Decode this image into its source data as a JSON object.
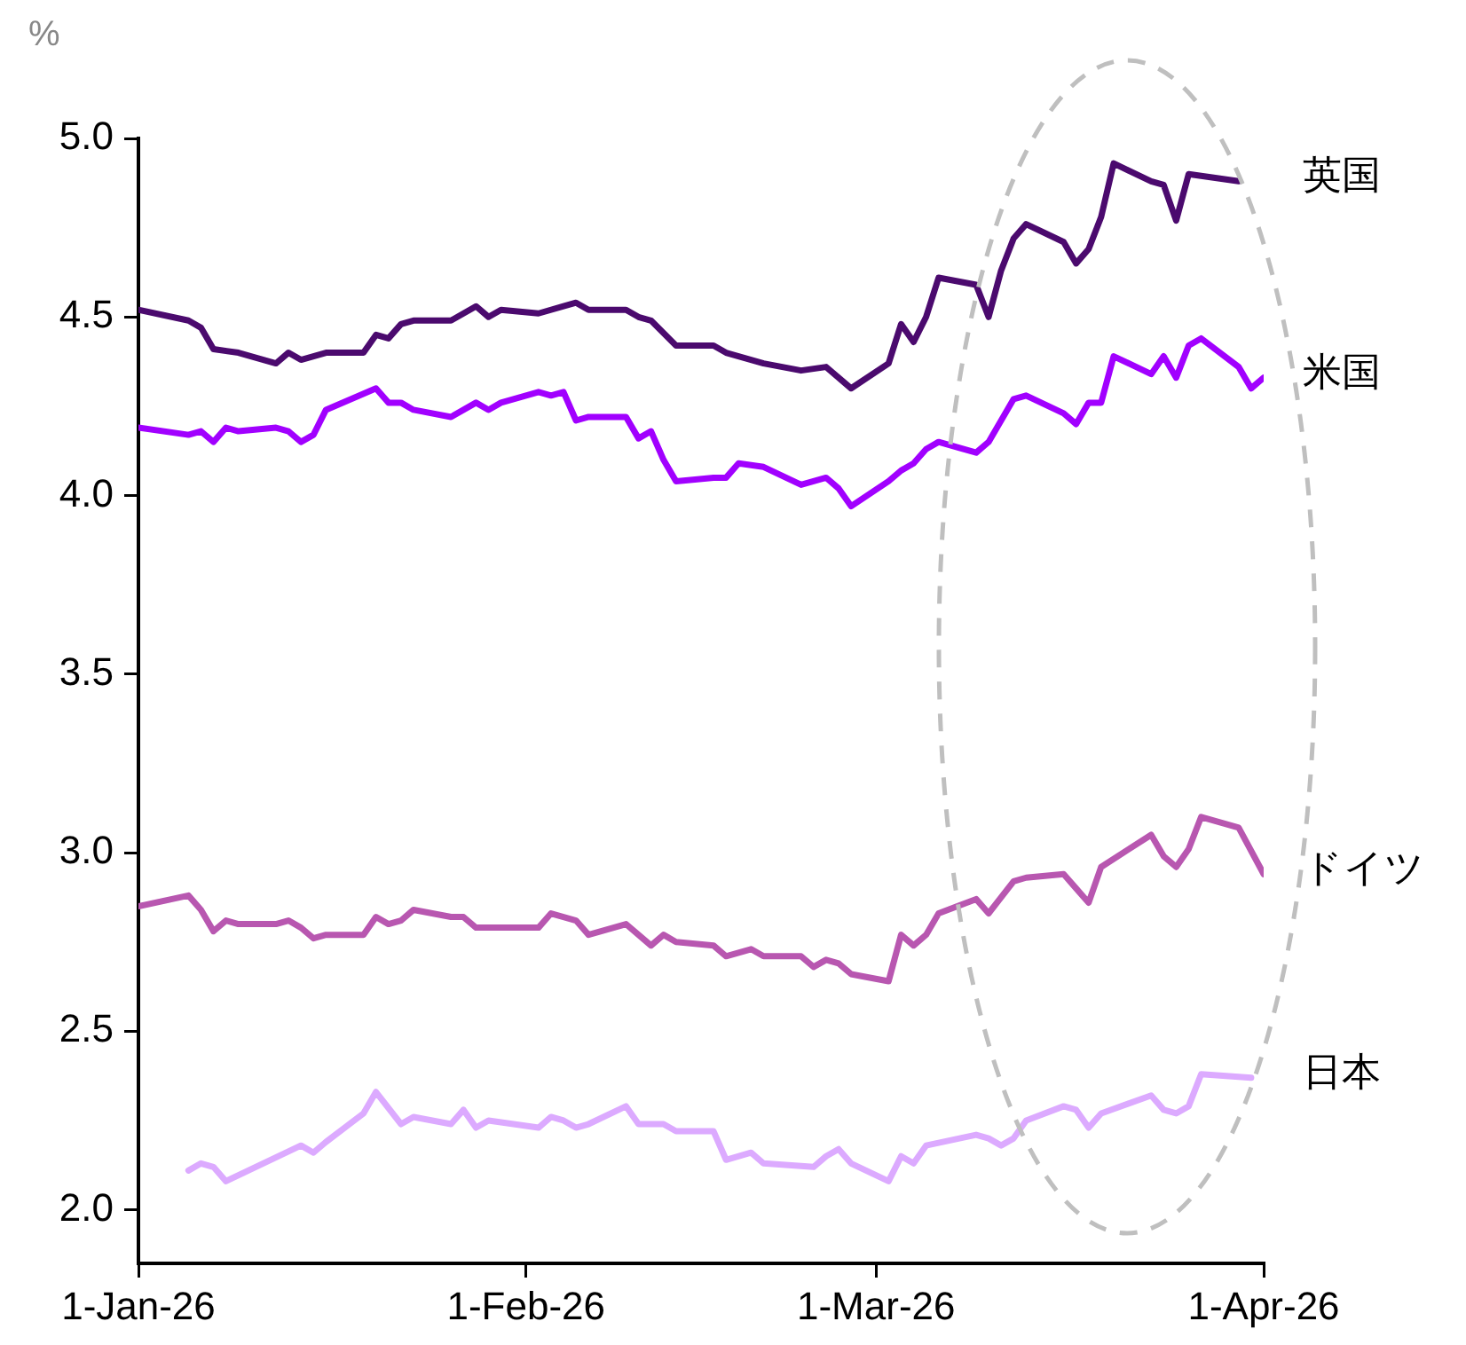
{
  "chart_data": {
    "type": "line",
    "ylabel": "%",
    "marker": "none",
    "line_style": "solid",
    "grid": false,
    "legend": false,
    "xlim": [
      "2026-01-01",
      "2026-04-01"
    ],
    "xticks": [
      {
        "value": "2026-01-01",
        "label": "1-Jan-26"
      },
      {
        "value": "2026-02-01",
        "label": "1-Feb-26"
      },
      {
        "value": "2026-03-01",
        "label": "1-Mar-26"
      },
      {
        "value": "2026-04-01",
        "label": "1-Apr-26"
      }
    ],
    "ylim": [
      1.85,
      5.0
    ],
    "yticks": [
      {
        "value": 2,
        "label": "2.0"
      },
      {
        "value": 2.5,
        "label": "2.5"
      },
      {
        "value": 3,
        "label": "3.0"
      },
      {
        "value": 3.5,
        "label": "3.5"
      },
      {
        "value": 4,
        "label": "4.0"
      },
      {
        "value": 4.5,
        "label": "4.5"
      },
      {
        "value": 5,
        "label": "5.0"
      }
    ],
    "series": [
      {
        "name": "英国",
        "color": "#4b0a6e",
        "x": [
          "2026-01-01",
          "2026-01-05",
          "2026-01-06",
          "2026-01-07",
          "2026-01-09",
          "2026-01-12",
          "2026-01-13",
          "2026-01-14",
          "2026-01-16",
          "2026-01-19",
          "2026-01-20",
          "2026-01-21",
          "2026-01-22",
          "2026-01-23",
          "2026-01-26",
          "2026-01-28",
          "2026-01-29",
          "2026-01-30",
          "2026-02-02",
          "2026-02-04",
          "2026-02-05",
          "2026-02-06",
          "2026-02-09",
          "2026-02-10",
          "2026-02-11",
          "2026-02-13",
          "2026-02-16",
          "2026-02-17",
          "2026-02-18",
          "2026-02-20",
          "2026-02-23",
          "2026-02-25",
          "2026-02-27",
          "2026-03-02",
          "2026-03-03",
          "2026-03-04",
          "2026-03-05",
          "2026-03-06",
          "2026-03-09",
          "2026-03-10",
          "2026-03-11",
          "2026-03-12",
          "2026-03-13",
          "2026-03-16",
          "2026-03-17",
          "2026-03-18",
          "2026-03-19",
          "2026-03-20",
          "2026-03-23",
          "2026-03-24",
          "2026-03-25",
          "2026-03-26",
          "2026-03-30"
        ],
        "values": [
          4.52,
          4.49,
          4.47,
          4.41,
          4.4,
          4.37,
          4.4,
          4.38,
          4.4,
          4.4,
          4.45,
          4.44,
          4.48,
          4.49,
          4.49,
          4.53,
          4.5,
          4.52,
          4.51,
          4.53,
          4.54,
          4.52,
          4.52,
          4.5,
          4.49,
          4.42,
          4.42,
          4.4,
          4.39,
          4.37,
          4.35,
          4.36,
          4.3,
          4.37,
          4.48,
          4.43,
          4.5,
          4.61,
          4.59,
          4.5,
          4.63,
          4.72,
          4.76,
          4.71,
          4.65,
          4.69,
          4.78,
          4.93,
          4.88,
          4.87,
          4.77,
          4.9,
          4.88
        ]
      },
      {
        "name": "米国",
        "color": "#a100ff",
        "x": [
          "2026-01-01",
          "2026-01-05",
          "2026-01-06",
          "2026-01-07",
          "2026-01-08",
          "2026-01-09",
          "2026-01-12",
          "2026-01-13",
          "2026-01-14",
          "2026-01-15",
          "2026-01-16",
          "2026-01-20",
          "2026-01-21",
          "2026-01-22",
          "2026-01-23",
          "2026-01-26",
          "2026-01-28",
          "2026-01-29",
          "2026-01-30",
          "2026-02-02",
          "2026-02-03",
          "2026-02-04",
          "2026-02-05",
          "2026-02-06",
          "2026-02-09",
          "2026-02-10",
          "2026-02-11",
          "2026-02-12",
          "2026-02-13",
          "2026-02-16",
          "2026-02-17",
          "2026-02-18",
          "2026-02-20",
          "2026-02-23",
          "2026-02-25",
          "2026-02-26",
          "2026-02-27",
          "2026-03-02",
          "2026-03-03",
          "2026-03-04",
          "2026-03-05",
          "2026-03-06",
          "2026-03-09",
          "2026-03-10",
          "2026-03-12",
          "2026-03-13",
          "2026-03-16",
          "2026-03-17",
          "2026-03-18",
          "2026-03-19",
          "2026-03-20",
          "2026-03-23",
          "2026-03-24",
          "2026-03-25",
          "2026-03-26",
          "2026-03-27",
          "2026-03-30",
          "2026-03-31",
          "2026-04-01"
        ],
        "values": [
          4.19,
          4.17,
          4.18,
          4.15,
          4.19,
          4.18,
          4.19,
          4.18,
          4.15,
          4.17,
          4.24,
          4.3,
          4.26,
          4.26,
          4.24,
          4.22,
          4.26,
          4.24,
          4.26,
          4.29,
          4.28,
          4.29,
          4.21,
          4.22,
          4.22,
          4.16,
          4.18,
          4.1,
          4.04,
          4.05,
          4.05,
          4.09,
          4.08,
          4.03,
          4.05,
          4.02,
          3.97,
          4.04,
          4.07,
          4.09,
          4.13,
          4.15,
          4.12,
          4.15,
          4.27,
          4.28,
          4.23,
          4.2,
          4.26,
          4.26,
          4.39,
          4.34,
          4.39,
          4.33,
          4.42,
          4.44,
          4.36,
          4.3,
          4.33
        ]
      },
      {
        "name": "ドイツ",
        "color": "#b857b0",
        "x": [
          "2026-01-01",
          "2026-01-05",
          "2026-01-06",
          "2026-01-07",
          "2026-01-08",
          "2026-01-09",
          "2026-01-12",
          "2026-01-13",
          "2026-01-14",
          "2026-01-15",
          "2026-01-16",
          "2026-01-19",
          "2026-01-20",
          "2026-01-21",
          "2026-01-22",
          "2026-01-23",
          "2026-01-26",
          "2026-01-27",
          "2026-01-28",
          "2026-02-02",
          "2026-02-03",
          "2026-02-05",
          "2026-02-06",
          "2026-02-09",
          "2026-02-11",
          "2026-02-12",
          "2026-02-13",
          "2026-02-16",
          "2026-02-17",
          "2026-02-19",
          "2026-02-20",
          "2026-02-23",
          "2026-02-24",
          "2026-02-25",
          "2026-02-26",
          "2026-02-27",
          "2026-03-02",
          "2026-03-03",
          "2026-03-04",
          "2026-03-05",
          "2026-03-06",
          "2026-03-09",
          "2026-03-10",
          "2026-03-12",
          "2026-03-13",
          "2026-03-16",
          "2026-03-17",
          "2026-03-18",
          "2026-03-19",
          "2026-03-23",
          "2026-03-24",
          "2026-03-25",
          "2026-03-26",
          "2026-03-27",
          "2026-03-30",
          "2026-04-01"
        ],
        "values": [
          2.85,
          2.88,
          2.84,
          2.78,
          2.81,
          2.8,
          2.8,
          2.81,
          2.79,
          2.76,
          2.77,
          2.77,
          2.82,
          2.8,
          2.81,
          2.84,
          2.82,
          2.82,
          2.79,
          2.79,
          2.83,
          2.81,
          2.77,
          2.8,
          2.74,
          2.77,
          2.75,
          2.74,
          2.71,
          2.73,
          2.71,
          2.71,
          2.68,
          2.7,
          2.69,
          2.66,
          2.64,
          2.77,
          2.74,
          2.77,
          2.83,
          2.87,
          2.83,
          2.92,
          2.93,
          2.94,
          2.9,
          2.86,
          2.96,
          3.05,
          2.99,
          2.96,
          3.01,
          3.1,
          3.07,
          2.94
        ]
      },
      {
        "name": "日本",
        "color": "#dcaaff",
        "x": [
          "2026-01-05",
          "2026-01-06",
          "2026-01-07",
          "2026-01-08",
          "2026-01-14",
          "2026-01-15",
          "2026-01-16",
          "2026-01-19",
          "2026-01-20",
          "2026-01-22",
          "2026-01-23",
          "2026-01-26",
          "2026-01-27",
          "2026-01-28",
          "2026-01-29",
          "2026-02-02",
          "2026-02-03",
          "2026-02-04",
          "2026-02-05",
          "2026-02-06",
          "2026-02-09",
          "2026-02-10",
          "2026-02-12",
          "2026-02-13",
          "2026-02-16",
          "2026-02-17",
          "2026-02-19",
          "2026-02-20",
          "2026-02-24",
          "2026-02-25",
          "2026-02-26",
          "2026-02-27",
          "2026-03-02",
          "2026-03-03",
          "2026-03-04",
          "2026-03-05",
          "2026-03-09",
          "2026-03-10",
          "2026-03-11",
          "2026-03-12",
          "2026-03-13",
          "2026-03-16",
          "2026-03-17",
          "2026-03-18",
          "2026-03-19",
          "2026-03-23",
          "2026-03-24",
          "2026-03-25",
          "2026-03-26",
          "2026-03-27",
          "2026-03-31"
        ],
        "values": [
          2.11,
          2.13,
          2.12,
          2.08,
          2.18,
          2.16,
          2.19,
          2.27,
          2.33,
          2.24,
          2.26,
          2.24,
          2.28,
          2.23,
          2.25,
          2.23,
          2.26,
          2.25,
          2.23,
          2.24,
          2.29,
          2.24,
          2.24,
          2.22,
          2.22,
          2.14,
          2.16,
          2.13,
          2.12,
          2.15,
          2.17,
          2.13,
          2.08,
          2.15,
          2.13,
          2.18,
          2.21,
          2.2,
          2.18,
          2.2,
          2.25,
          2.29,
          2.28,
          2.23,
          2.27,
          2.32,
          2.28,
          2.27,
          2.29,
          2.38,
          2.37
        ]
      }
    ]
  }
}
